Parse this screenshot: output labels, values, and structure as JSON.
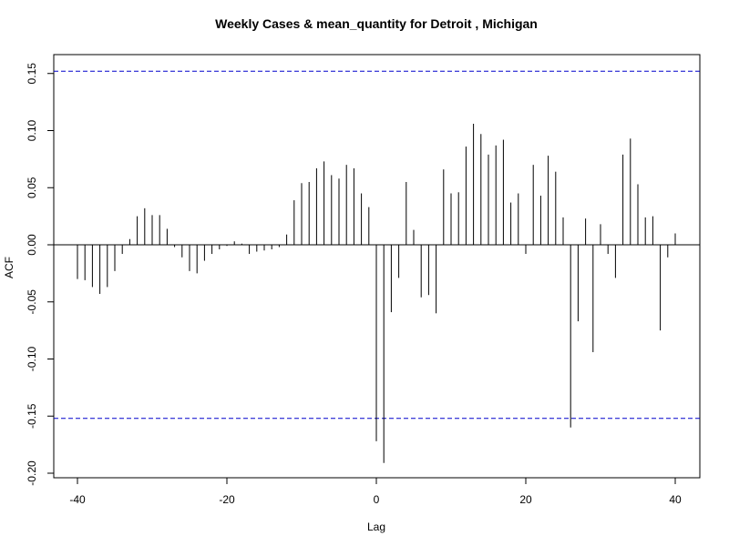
{
  "chart_data": {
    "type": "bar",
    "title": "Weekly Cases & mean_quantity for Detroit , Michigan",
    "xlabel": "Lag",
    "ylabel": "ACF",
    "xlim": [
      -43,
      43
    ],
    "ylim": [
      -0.2,
      0.16
    ],
    "x_ticks": [
      -40,
      -20,
      0,
      20,
      40
    ],
    "y_ticks": [
      -0.2,
      -0.15,
      -0.1,
      -0.05,
      0.0,
      0.05,
      0.1,
      0.15
    ],
    "x_tick_labels": [
      "-40",
      "-20",
      "0",
      "20",
      "40"
    ],
    "y_tick_labels": [
      "-0.20",
      "-0.15",
      "-0.10",
      "-0.05",
      "0.00",
      "0.05",
      "0.10",
      "0.15"
    ],
    "confidence_bound": 0.152,
    "lags": [
      -40,
      -39,
      -38,
      -37,
      -36,
      -35,
      -34,
      -33,
      -32,
      -31,
      -30,
      -29,
      -28,
      -27,
      -26,
      -25,
      -24,
      -23,
      -22,
      -21,
      -20,
      -19,
      -18,
      -17,
      -16,
      -15,
      -14,
      -13,
      -12,
      -11,
      -10,
      -9,
      -8,
      -7,
      -6,
      -5,
      -4,
      -3,
      -2,
      -1,
      0,
      1,
      2,
      3,
      4,
      5,
      6,
      7,
      8,
      9,
      10,
      11,
      12,
      13,
      14,
      15,
      16,
      17,
      18,
      19,
      20,
      21,
      22,
      23,
      24,
      25,
      26,
      27,
      28,
      29,
      30,
      31,
      32,
      33,
      34,
      35,
      36,
      37,
      38,
      39,
      40
    ],
    "values": [
      -0.03,
      -0.031,
      -0.037,
      -0.043,
      -0.037,
      -0.023,
      -0.008,
      0.005,
      0.025,
      0.032,
      0.026,
      0.026,
      0.014,
      -0.002,
      -0.011,
      -0.023,
      -0.025,
      -0.014,
      -0.008,
      -0.004,
      -0.001,
      0.003,
      0.001,
      -0.008,
      -0.006,
      -0.005,
      -0.004,
      -0.002,
      0.009,
      0.039,
      0.054,
      0.055,
      0.067,
      0.073,
      0.061,
      0.058,
      0.07,
      0.067,
      0.045,
      0.033,
      -0.172,
      -0.191,
      -0.059,
      -0.029,
      0.055,
      0.013,
      -0.046,
      -0.044,
      -0.06,
      0.066,
      0.045,
      0.046,
      0.086,
      0.106,
      0.097,
      0.079,
      0.087,
      0.092,
      0.037,
      0.045,
      -0.008,
      0.07,
      0.043,
      0.078,
      0.064,
      0.024,
      -0.16,
      -0.067,
      0.023,
      -0.094,
      0.018,
      -0.008,
      -0.029,
      0.079,
      0.093,
      0.053,
      0.024,
      0.025,
      -0.075,
      -0.011,
      0.01
    ],
    "colors": {
      "bars": "#000000",
      "bounds": "#0000cc",
      "zero_line": "#000000"
    }
  }
}
